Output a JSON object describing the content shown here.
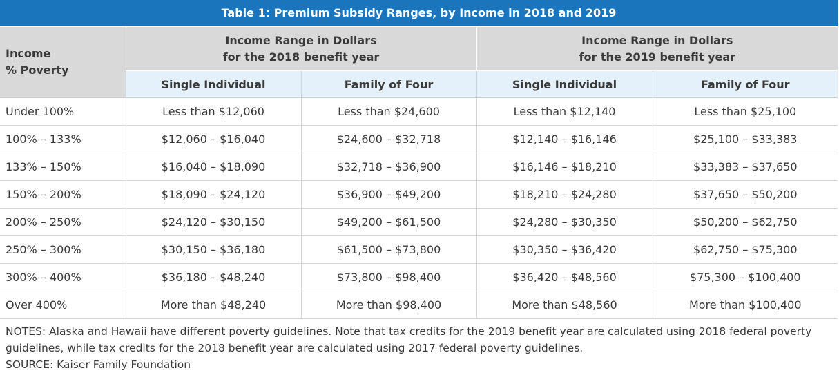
{
  "title": "Table 1: Premium Subsidy Ranges, by Income in 2018 and 2019",
  "header": {
    "income_line1": "Income",
    "income_line2": "% Poverty",
    "group_2018_line1": "Income Range in Dollars",
    "group_2018_line2": "for the 2018 benefit year",
    "group_2019_line1": "Income Range in Dollars",
    "group_2019_line2": "for the 2019 benefit year",
    "col_single_2018": "Single Individual",
    "col_family_2018": "Family of Four",
    "col_single_2019": "Single Individual",
    "col_family_2019": "Family of Four"
  },
  "chart_data": {
    "type": "table",
    "title": "Table 1: Premium Subsidy Ranges, by Income in 2018 and 2019",
    "columns": [
      "Income % Poverty",
      "2018 Single Individual",
      "2018 Family of Four",
      "2019 Single Individual",
      "2019 Family of Four"
    ],
    "rows": [
      [
        "Under 100%",
        "Less than $12,060",
        "Less than $24,600",
        "Less than $12,140",
        "Less than $25,100"
      ],
      [
        "100% – 133%",
        "$12,060 – $16,040",
        "$24,600 – $32,718",
        "$12,140 – $16,146",
        "$25,100 – $33,383"
      ],
      [
        "133% – 150%",
        "$16,040 – $18,090",
        "$32,718 – $36,900",
        "$16,146 – $18,210",
        "$33,383 – $37,650"
      ],
      [
        "150% – 200%",
        "$18,090 – $24,120",
        "$36,900 – $49,200",
        "$18,210 – $24,280",
        "$37,650 – $50,200"
      ],
      [
        "200% – 250%",
        "$24,120 – $30,150",
        "$49,200 – $61,500",
        "$24,280 – $30,350",
        "$50,200 – $62,750"
      ],
      [
        "250% – 300%",
        "$30,150 – $36,180",
        "$61,500 – $73,800",
        "$30,350 – $36,420",
        "$62,750 – $75,300"
      ],
      [
        "300% – 400%",
        "$36,180 – $48,240",
        "$73,800 – $98,400",
        "$36,420 – $48,560",
        "$75,300 – $100,400"
      ],
      [
        "Over 400%",
        "More than $48,240",
        "More than $98,400",
        "More than $48,560",
        "More than $100,400"
      ]
    ]
  },
  "notes": {
    "notes_text": "NOTES: Alaska and Hawaii have different poverty guidelines. Note that tax credits for the 2019 benefit year are calculated using 2018 federal poverty guidelines, while tax credits for the 2018 benefit year are calculated using 2017 federal poverty guidelines.",
    "source_text": "SOURCE: Kaiser Family Foundation"
  },
  "colors": {
    "title_bg": "#1a75bc",
    "header_bg": "#d9d9d9",
    "subheader_bg": "#e4f1fa"
  }
}
